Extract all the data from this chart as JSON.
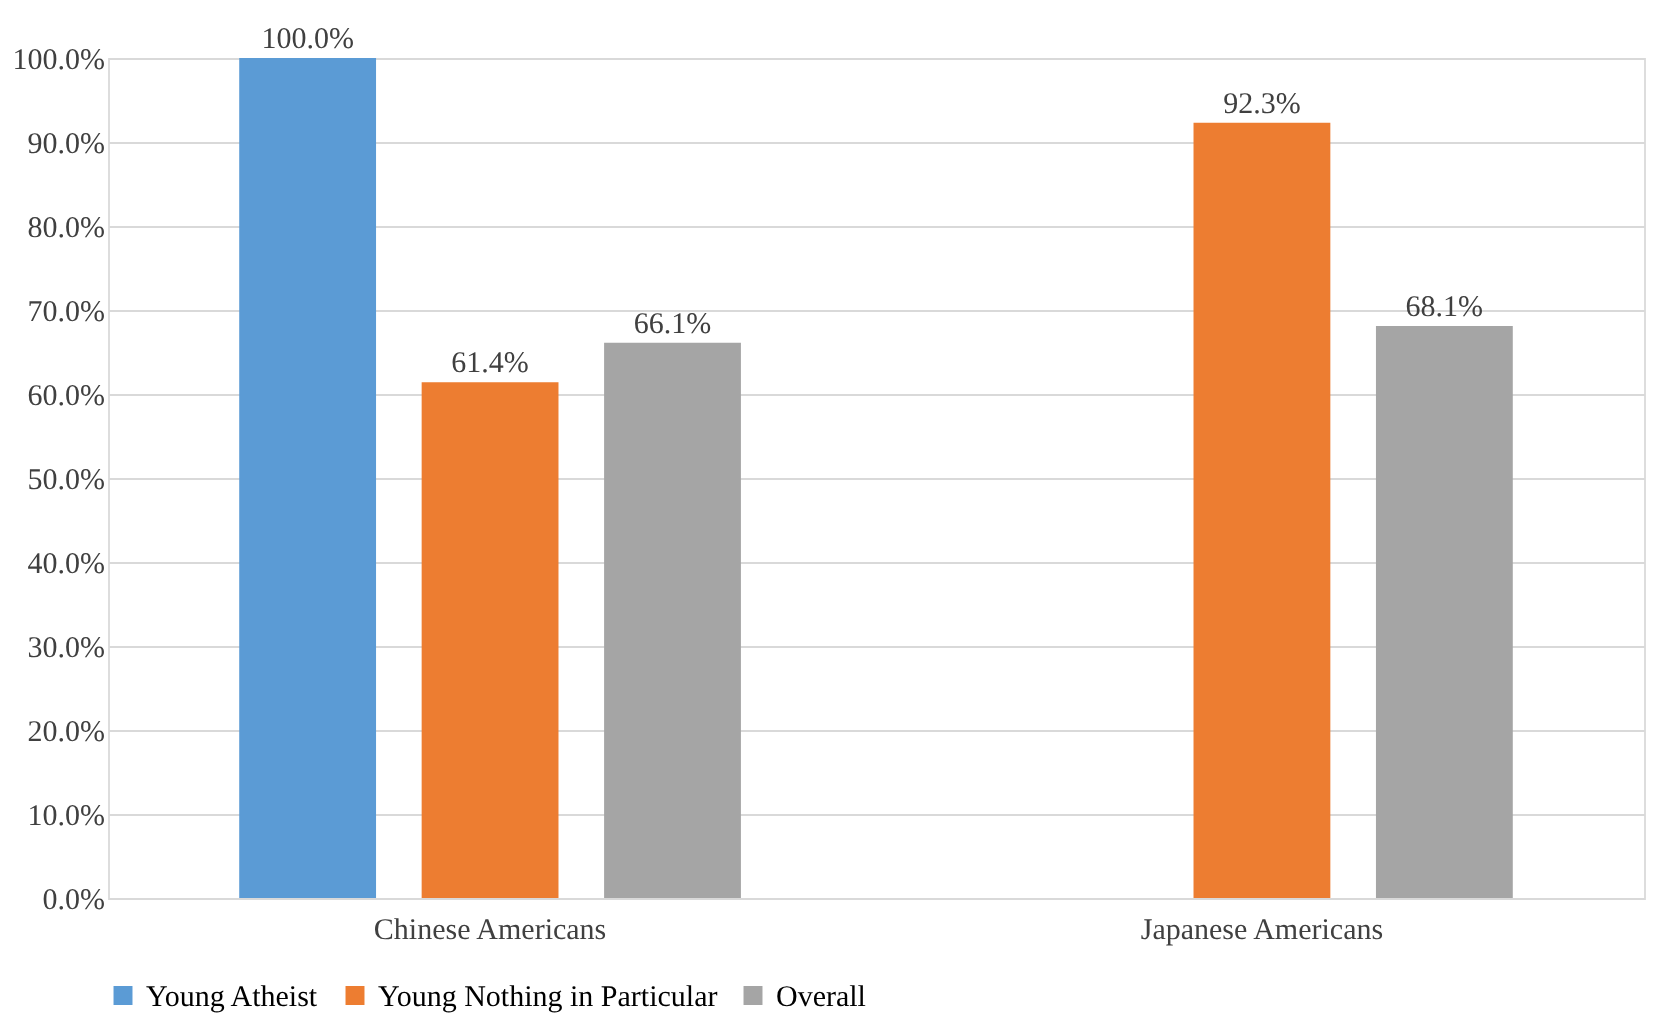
{
  "chart_data": {
    "type": "bar",
    "categories": [
      "Chinese Americans",
      "Japanese Americans"
    ],
    "series": [
      {
        "name": "Young Atheist",
        "color": "#5b9bd5",
        "values": [
          100.0,
          null
        ],
        "value_labels": [
          "100.0%",
          null
        ]
      },
      {
        "name": "Young Nothing in Particular",
        "color": "#ed7d31",
        "values": [
          61.4,
          92.3
        ],
        "value_labels": [
          "61.4%",
          "92.3%"
        ]
      },
      {
        "name": "Overall",
        "color": "#a5a5a5",
        "values": [
          66.1,
          68.1
        ],
        "value_labels": [
          "66.1%",
          "68.1%"
        ]
      }
    ],
    "ylim": [
      0,
      100
    ],
    "yticks": [
      {
        "value": 0,
        "label": "0.0%"
      },
      {
        "value": 10,
        "label": "10.0%"
      },
      {
        "value": 20,
        "label": "20.0%"
      },
      {
        "value": 30,
        "label": "30.0%"
      },
      {
        "value": 40,
        "label": "40.0%"
      },
      {
        "value": 50,
        "label": "50.0%"
      },
      {
        "value": 60,
        "label": "60.0%"
      },
      {
        "value": 70,
        "label": "70.0%"
      },
      {
        "value": 80,
        "label": "80.0%"
      },
      {
        "value": 90,
        "label": "90.0%"
      },
      {
        "value": 100,
        "label": "100.0%"
      }
    ],
    "grid": "y",
    "legend": "bottom"
  }
}
